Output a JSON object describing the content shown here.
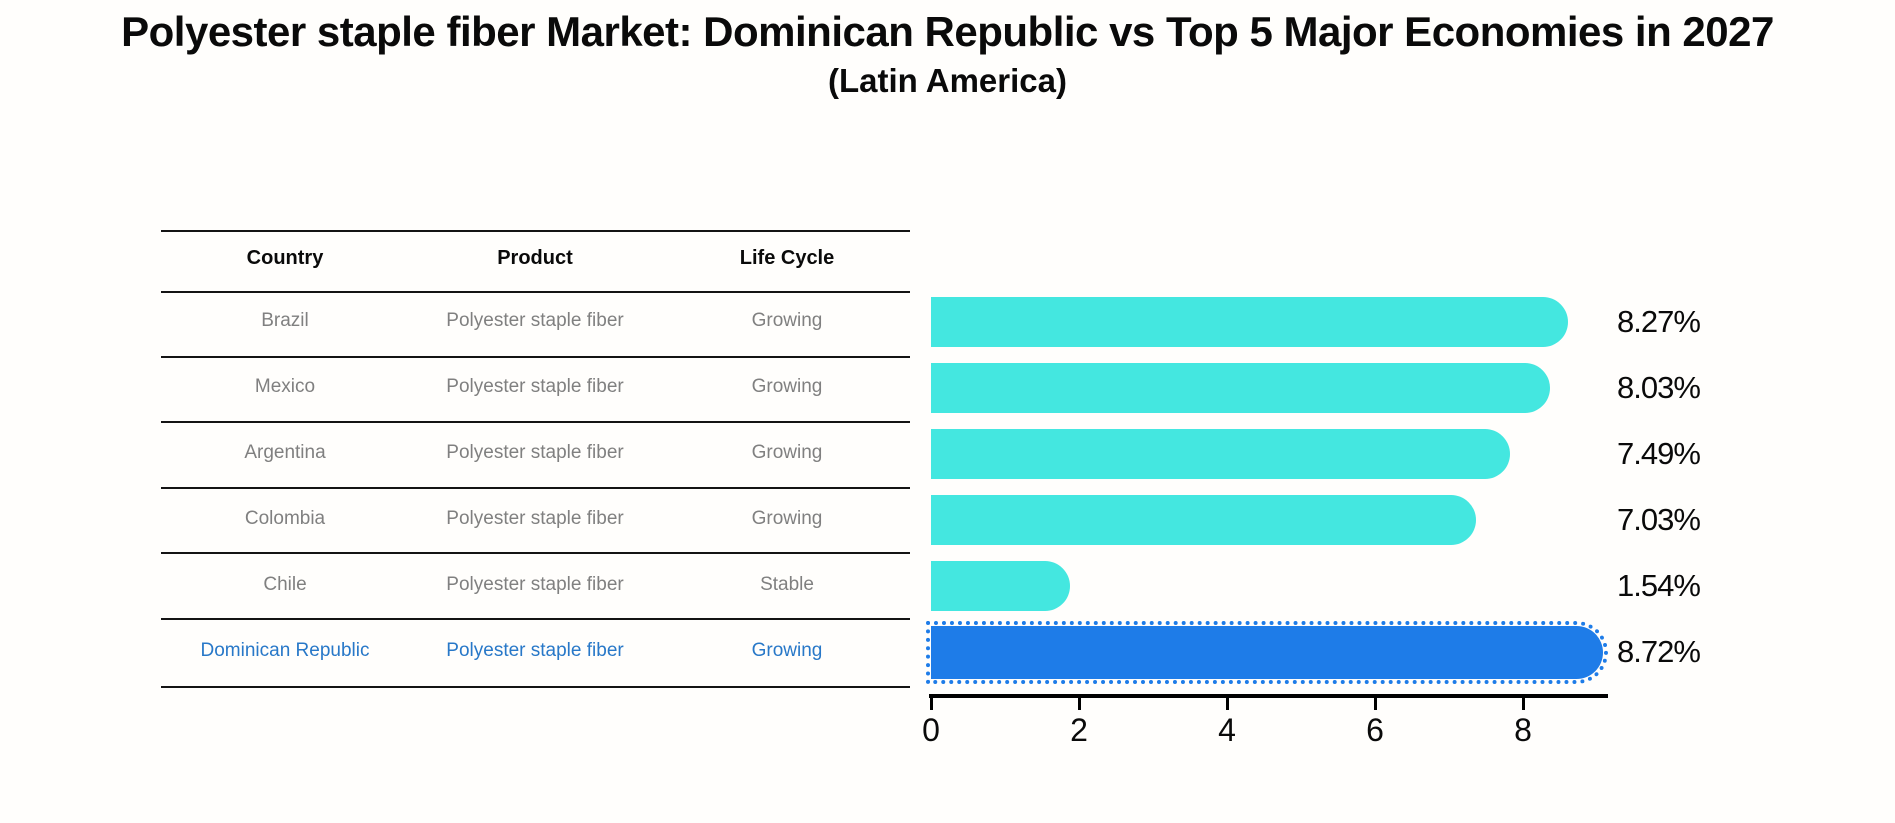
{
  "title": "Polyester staple fiber Market: Dominican Republic vs Top 5 Major Economies in 2027",
  "subtitle": "(Latin America)",
  "table": {
    "headers": [
      "Country",
      "Product",
      "Life Cycle"
    ],
    "rows": [
      {
        "country": "Brazil",
        "product": "Polyester staple fiber",
        "life_cycle": "Growing",
        "highlighted": false
      },
      {
        "country": "Mexico",
        "product": "Polyester staple fiber",
        "life_cycle": "Growing",
        "highlighted": false
      },
      {
        "country": "Argentina",
        "product": "Polyester staple fiber",
        "life_cycle": "Growing",
        "highlighted": false
      },
      {
        "country": "Colombia",
        "product": "Polyester staple fiber",
        "life_cycle": "Growing",
        "highlighted": false
      },
      {
        "country": "Chile",
        "product": "Polyester staple fiber",
        "life_cycle": "Stable",
        "highlighted": false
      },
      {
        "country": "Dominican Republic",
        "product": "Polyester staple fiber",
        "life_cycle": "Growing",
        "highlighted": true
      }
    ]
  },
  "chart_data": {
    "type": "bar",
    "orientation": "horizontal",
    "title": "Polyester staple fiber Market: Dominican Republic vs Top 5 Major Economies in 2027",
    "subtitle": "(Latin America)",
    "categories": [
      "Brazil",
      "Mexico",
      "Argentina",
      "Colombia",
      "Chile",
      "Dominican Republic"
    ],
    "values": [
      8.27,
      8.03,
      7.49,
      7.03,
      1.54,
      8.72
    ],
    "value_labels": [
      "8.27%",
      "8.03%",
      "7.49%",
      "7.03%",
      "1.54%",
      "8.72%"
    ],
    "x_ticks": [
      "0",
      "2",
      "4",
      "6",
      "8"
    ],
    "x_tick_values": [
      0,
      2,
      4,
      6,
      8
    ],
    "xlim": [
      0,
      9.15
    ],
    "grid": false,
    "legend_position": "none",
    "bar_color": "#44E7E0",
    "highlight_bar_color": "#1E7CE8",
    "highlight_index": 5,
    "highlight_bar_edge": "dotted"
  },
  "colors": {
    "background": "#FFFEFC",
    "table_text": "#808080",
    "header_text": "#0A0A0A",
    "highlight_text": "#2878C8",
    "axis": "#000000"
  }
}
